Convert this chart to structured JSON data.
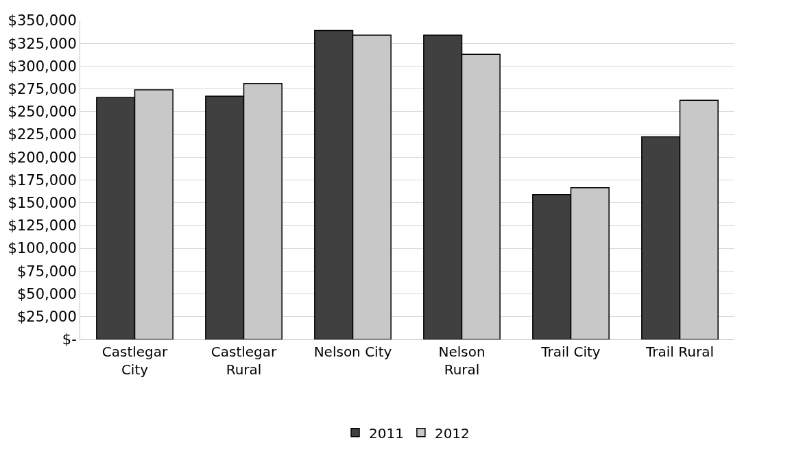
{
  "chart_data": {
    "type": "bar",
    "categories": [
      "Castlegar City",
      "Castlegar Rural",
      "Nelson City",
      "Nelson Rural",
      "Trail City",
      "Trail Rural"
    ],
    "series": [
      {
        "name": "2011",
        "color": "#404040",
        "values": [
          265500,
          267000,
          339000,
          334000,
          159000,
          222500
        ]
      },
      {
        "name": "2012",
        "color": "#c8c8c8",
        "values": [
          274000,
          281000,
          334000,
          313000,
          166500,
          262500
        ]
      }
    ],
    "ylim": [
      0,
      350000
    ],
    "yticks": [
      {
        "value": 0,
        "label": "$-"
      },
      {
        "value": 25000,
        "label": "$25,000"
      },
      {
        "value": 50000,
        "label": "$50,000"
      },
      {
        "value": 75000,
        "label": "$75,000"
      },
      {
        "value": 100000,
        "label": "$100,000"
      },
      {
        "value": 125000,
        "label": "$125,000"
      },
      {
        "value": 150000,
        "label": "$150,000"
      },
      {
        "value": 175000,
        "label": "$175,000"
      },
      {
        "value": 200000,
        "label": "$200,000"
      },
      {
        "value": 225000,
        "label": "$225,000"
      },
      {
        "value": 250000,
        "label": "$250,000"
      },
      {
        "value": 275000,
        "label": "$275,000"
      },
      {
        "value": 300000,
        "label": "$300,000"
      },
      {
        "value": 325000,
        "label": "$325,000"
      },
      {
        "value": 350000,
        "label": "$350,000"
      }
    ],
    "grid": "y",
    "legend": "bottom"
  }
}
